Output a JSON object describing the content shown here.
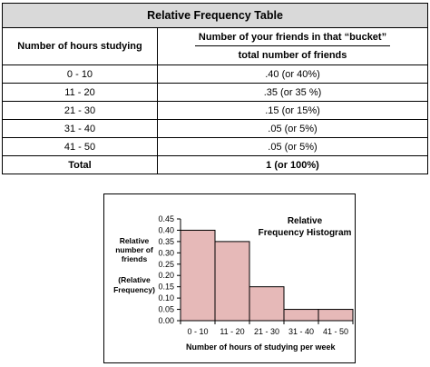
{
  "table": {
    "title": "Relative Frequency Table",
    "col1_header": "Number of hours studying",
    "col2_header_numerator": "Number of your friends in that “bucket”",
    "col2_header_denominator": "total number of friends",
    "rows": [
      {
        "range": "0 - 10",
        "value": ".40 (or 40%)"
      },
      {
        "range": "11 - 20",
        "value": ".35 (or 35 %)"
      },
      {
        "range": "21 - 30",
        "value": ".15 (or 15%)"
      },
      {
        "range": "31 - 40",
        "value": ".05 (or 5%)"
      },
      {
        "range": "41 - 50",
        "value": ".05 (or 5%)"
      }
    ],
    "total_label": "Total",
    "total_value": "1 (or 100%)"
  },
  "chart_data": {
    "type": "bar",
    "title_line1": "Relative",
    "title_line2": "Frequency Histogram",
    "ylabel_line1": "Relative",
    "ylabel_line2": "number of",
    "ylabel_line3": "friends",
    "ylabel_line4": "(Relative",
    "ylabel_line5": "Frequency)",
    "xlabel": "Number of hours of studying per week",
    "categories": [
      "0 - 10",
      "11 - 20",
      "21 - 30",
      "31 - 40",
      "41 - 50"
    ],
    "values": [
      0.4,
      0.35,
      0.15,
      0.05,
      0.05
    ],
    "yticks": [
      "0.00",
      "0.05",
      "0.10",
      "0.15",
      "0.20",
      "0.25",
      "0.30",
      "0.35",
      "0.40",
      "0.45"
    ],
    "ylim": [
      0,
      0.45
    ],
    "bar_color": "#e6b9b8",
    "bar_edge": "#000000",
    "grid": false
  }
}
